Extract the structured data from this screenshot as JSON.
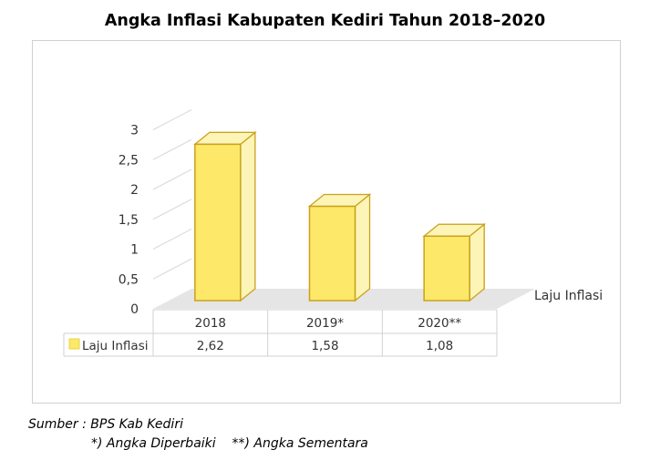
{
  "chart_data": {
    "type": "bar",
    "title": "Angka Inflasi Kabupaten Kediri Tahun 2018–2020",
    "categories": [
      "2018",
      "2019*",
      "2020**"
    ],
    "series": [
      {
        "name": "Laju Inflasi",
        "values": [
          2.62,
          1.58,
          1.08
        ],
        "labels": [
          "2,62",
          "1,58",
          "1,08"
        ]
      }
    ],
    "ylim": [
      0,
      3
    ],
    "yticks": [
      0,
      0.5,
      1,
      1.5,
      2,
      2.5,
      3
    ],
    "ytick_labels": [
      "0",
      "0,5",
      "1",
      "1,5",
      "2",
      "2,5",
      "3"
    ],
    "depth_axis_label": "Laju Inflasi",
    "legend": "data-table",
    "grid": true,
    "colors": {
      "bar_fill": "#fde869",
      "bar_side": "#fdf4b8",
      "bar_edge": "#c9a21b",
      "floor": "#e5e5e5"
    }
  },
  "footnotes": {
    "source": "Sumber : BPS Kab Kediri",
    "note": "*) Angka Diperbaiki    **) Angka Sementara"
  }
}
